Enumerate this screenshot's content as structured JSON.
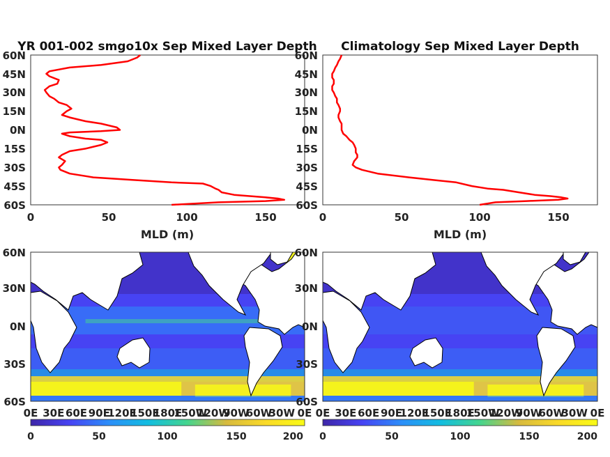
{
  "colors": {
    "curve": "#ff0000",
    "land": "#ffffff",
    "coast": "#000000",
    "colormap": [
      "#3e26a8",
      "#4743f3",
      "#2c8ef9",
      "#12bde0",
      "#44d58e",
      "#d7ba3e",
      "#fada28",
      "#f9fb15"
    ]
  },
  "chart_data": [
    {
      "type": "line",
      "title": "YR 001-002 smgo10x Sep Mixed Layer Depth",
      "xlabel": "MLD (m)",
      "ylabel": "",
      "xlim": [
        0,
        175
      ],
      "ylim": [
        -60,
        60
      ],
      "xticks": [
        "0",
        "50",
        "100",
        "150"
      ],
      "yticks": [
        "60N",
        "45N",
        "30N",
        "15N",
        "0N",
        "15S",
        "30S",
        "45S",
        "60S"
      ],
      "series": [
        {
          "lat": [
            60,
            58,
            55,
            52,
            50,
            47,
            45,
            43,
            40,
            37,
            35,
            32,
            30,
            27,
            25,
            22,
            20,
            17,
            15,
            12,
            10,
            7,
            5,
            2,
            0,
            -1,
            -2,
            -3,
            -5,
            -7,
            -8,
            -10,
            -12,
            -15,
            -17,
            -20,
            -22,
            -25,
            -28,
            -30,
            -32,
            -35,
            -38,
            -40,
            -42,
            -43,
            -45,
            -47,
            -48,
            -50,
            -52,
            -53,
            -54,
            -55,
            -56,
            -57,
            -58,
            -60
          ],
          "mld": [
            70,
            68,
            62,
            45,
            25,
            12,
            10,
            12,
            18,
            17,
            12,
            9,
            10,
            12,
            15,
            18,
            23,
            26,
            23,
            20,
            25,
            35,
            45,
            55,
            57,
            45,
            25,
            20,
            25,
            35,
            45,
            49,
            45,
            35,
            25,
            20,
            18,
            22,
            20,
            18,
            19,
            25,
            40,
            65,
            90,
            110,
            115,
            118,
            120,
            122,
            130,
            140,
            150,
            158,
            162,
            150,
            120,
            90
          ]
        }
      ]
    },
    {
      "type": "line",
      "title": "Climatology Sep Mixed Layer Depth",
      "xlabel": "MLD (m)",
      "ylabel": "",
      "xlim": [
        0,
        175
      ],
      "ylim": [
        -60,
        60
      ],
      "xticks": [
        "0",
        "50",
        "100",
        "150"
      ],
      "yticks": [
        "60N",
        "45N",
        "30N",
        "15N",
        "0N",
        "15S",
        "30S",
        "45S",
        "60S"
      ],
      "series": [
        {
          "lat": [
            60,
            57,
            55,
            52,
            50,
            47,
            45,
            42,
            40,
            37,
            35,
            32,
            30,
            27,
            25,
            22,
            20,
            17,
            15,
            12,
            10,
            7,
            5,
            2,
            0,
            -3,
            -5,
            -8,
            -10,
            -12,
            -15,
            -18,
            -20,
            -22,
            -25,
            -28,
            -30,
            -32,
            -35,
            -38,
            -40,
            -42,
            -45,
            -47,
            -48,
            -50,
            -52,
            -53,
            -54,
            -55,
            -56,
            -57,
            -58,
            -60
          ],
          "mld": [
            12,
            11,
            10,
            9,
            8,
            7,
            6,
            6,
            7,
            7,
            6,
            6,
            7,
            8,
            9,
            9,
            10,
            11,
            11,
            10,
            10,
            11,
            12,
            12,
            12,
            13,
            15,
            17,
            19,
            20,
            21,
            21,
            22,
            22,
            20,
            19,
            21,
            25,
            35,
            55,
            70,
            85,
            95,
            105,
            115,
            125,
            135,
            145,
            152,
            156,
            150,
            130,
            110,
            100
          ]
        }
      ]
    },
    {
      "type": "heatmap",
      "title": "",
      "xticks": [
        "0E",
        "30E",
        "60E",
        "90E",
        "120E",
        "150E",
        "180E",
        "150W",
        "120W",
        "90W",
        "60W",
        "30W",
        "0E"
      ],
      "yticks": [
        "60N",
        "30N",
        "0N",
        "30S",
        "60S"
      ],
      "zlim": [
        0,
        200
      ],
      "colorbar_ticks": [
        "0",
        "50",
        "100",
        "150",
        "200"
      ]
    },
    {
      "type": "heatmap",
      "title": "",
      "xticks": [
        "0E",
        "30E",
        "60E",
        "90E",
        "120E",
        "150E",
        "180E",
        "150W",
        "120W",
        "90W",
        "60W",
        "30W",
        "0E"
      ],
      "yticks": [
        "60N",
        "30N",
        "0N",
        "30S",
        "60S"
      ],
      "zlim": [
        0,
        200
      ],
      "colorbar_ticks": [
        "0",
        "50",
        "100",
        "150",
        "200"
      ]
    }
  ]
}
